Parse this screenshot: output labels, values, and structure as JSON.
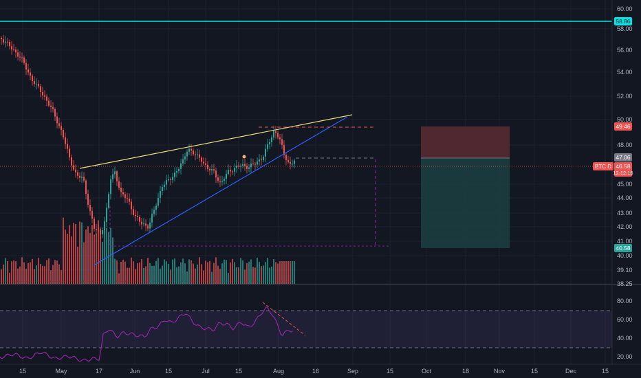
{
  "chart_data": {
    "type": "candlestick",
    "price_axis": {
      "ticks": [
        "60.00",
        "58.00",
        "56.00",
        "54.00",
        "52.00",
        "50.00",
        "48.00",
        "45.00",
        "44.00",
        "43.00",
        "42.00",
        "41.00",
        "40.00",
        "39.10",
        "38.25"
      ]
    },
    "rsi_axis": {
      "ticks": [
        "80.00",
        "60.00",
        "40.00",
        "20.00"
      ]
    },
    "time_axis": {
      "ticks": [
        "15",
        "May",
        "17",
        "Jun",
        "15",
        "Jul",
        "15",
        "Aug",
        "16",
        "Sep",
        "15",
        "Oct",
        "18",
        "Nov",
        "15",
        "Dec",
        "15"
      ]
    },
    "price_labels": {
      "resistance": "58.86",
      "stop_loss": "49.46",
      "entry": "47.06",
      "symbol": "BTC D",
      "current_price": "46.58",
      "countdown": "12:12:15",
      "target": "40.58"
    },
    "colors": {
      "background": "#131722",
      "up": "#26a69a",
      "down": "#ef5350",
      "resistance_line": "#00e5e5",
      "upper_trendline": "#f0e27a",
      "lower_trendline": "#2962ff",
      "rsi": "#9c27b0",
      "stop_zone": "#5b2b33",
      "target_zone": "#1b3d3f"
    }
  }
}
